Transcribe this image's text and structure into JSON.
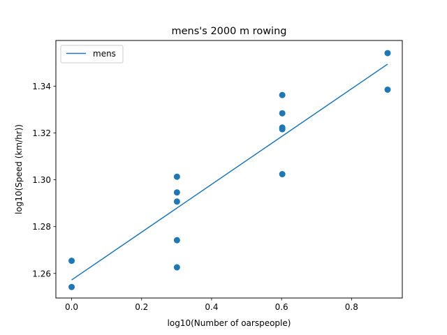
{
  "chart_data": {
    "type": "scatter",
    "title": "mens's 2000 m rowing",
    "xlabel": "log10(Number of oarspeople)",
    "ylabel": "log10(Speed (km/hr))",
    "xlim": [
      -0.045,
      0.945
    ],
    "ylim": [
      1.2495,
      1.3595
    ],
    "xticks": [
      0.0,
      0.2,
      0.4,
      0.6,
      0.8
    ],
    "xtick_labels": [
      "0.0",
      "0.2",
      "0.4",
      "0.6",
      "0.8"
    ],
    "yticks": [
      1.26,
      1.28,
      1.3,
      1.32,
      1.34
    ],
    "ytick_labels": [
      "1.26",
      "1.28",
      "1.30",
      "1.32",
      "1.34"
    ],
    "grid": false,
    "legend": {
      "position": "top-left",
      "entries": [
        "mens"
      ]
    },
    "colors": {
      "series": "#1f77b4"
    },
    "points": [
      {
        "x": 0.0,
        "y": 1.2654
      },
      {
        "x": 0.0,
        "y": 1.2542
      },
      {
        "x": 0.301,
        "y": 1.3013
      },
      {
        "x": 0.301,
        "y": 1.2946
      },
      {
        "x": 0.301,
        "y": 1.2907
      },
      {
        "x": 0.301,
        "y": 1.2742
      },
      {
        "x": 0.301,
        "y": 1.2626
      },
      {
        "x": 0.602,
        "y": 1.3362
      },
      {
        "x": 0.602,
        "y": 1.3284
      },
      {
        "x": 0.602,
        "y": 1.3223
      },
      {
        "x": 0.602,
        "y": 1.3216
      },
      {
        "x": 0.602,
        "y": 1.3024
      },
      {
        "x": 0.903,
        "y": 1.3541
      },
      {
        "x": 0.903,
        "y": 1.3385
      }
    ],
    "series": [
      {
        "name": "mens",
        "type": "line",
        "x": [
          0.0,
          0.903
        ],
        "y": [
          1.2572,
          1.3494
        ]
      }
    ]
  }
}
